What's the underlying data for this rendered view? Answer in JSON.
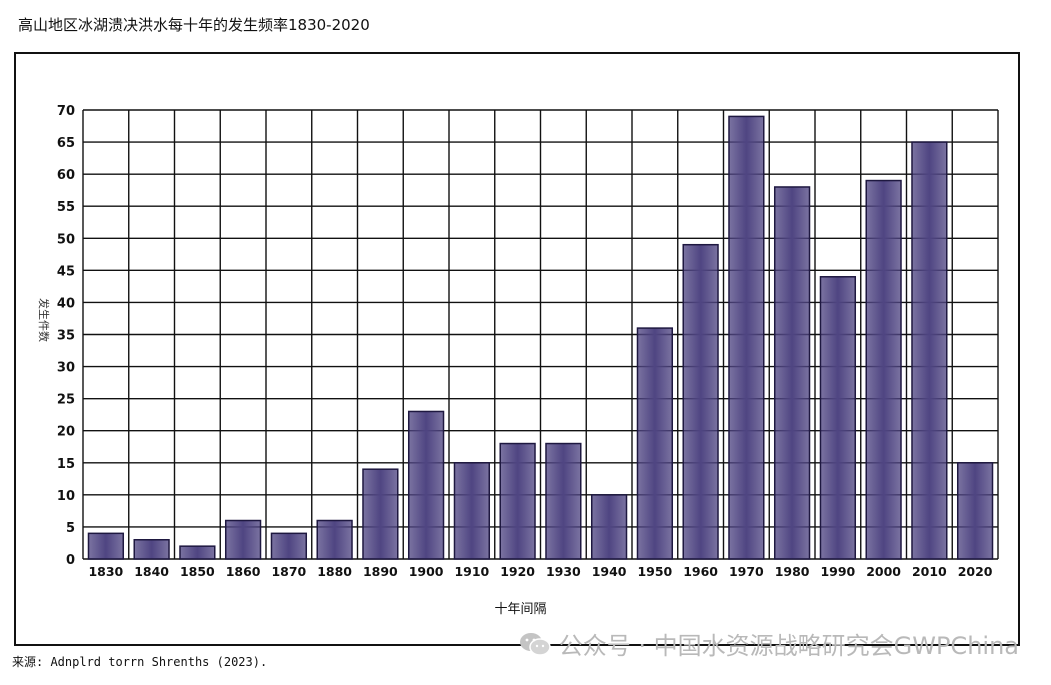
{
  "chart_data": {
    "type": "bar",
    "title": "高山地区冰湖溃决洪水每十年的发生频率1830-2020",
    "xlabel": "十年间隔",
    "ylabel": "发生件数",
    "ylim": [
      0,
      70
    ],
    "yticks": [
      0,
      5,
      10,
      15,
      20,
      25,
      30,
      35,
      40,
      45,
      50,
      55,
      60,
      65,
      70
    ],
    "categories": [
      "1830",
      "1840",
      "1850",
      "1860",
      "1870",
      "1880",
      "1890",
      "1900",
      "1910",
      "1920",
      "1930",
      "1940",
      "1950",
      "1960",
      "1970",
      "1980",
      "1990",
      "2000",
      "2010",
      "2020"
    ],
    "values": [
      4,
      3,
      2,
      6,
      4,
      6,
      14,
      23,
      15,
      18,
      18,
      10,
      36,
      49,
      69,
      58,
      44,
      59,
      65,
      15
    ],
    "bar_color": "#4f4582",
    "grid": true
  },
  "source": "来源: Adnplrd torrn Shrenths (2023).",
  "watermark": {
    "icon": "wechat-icon",
    "text": "公众号 · 中国水资源战略研究会GWPChina"
  }
}
